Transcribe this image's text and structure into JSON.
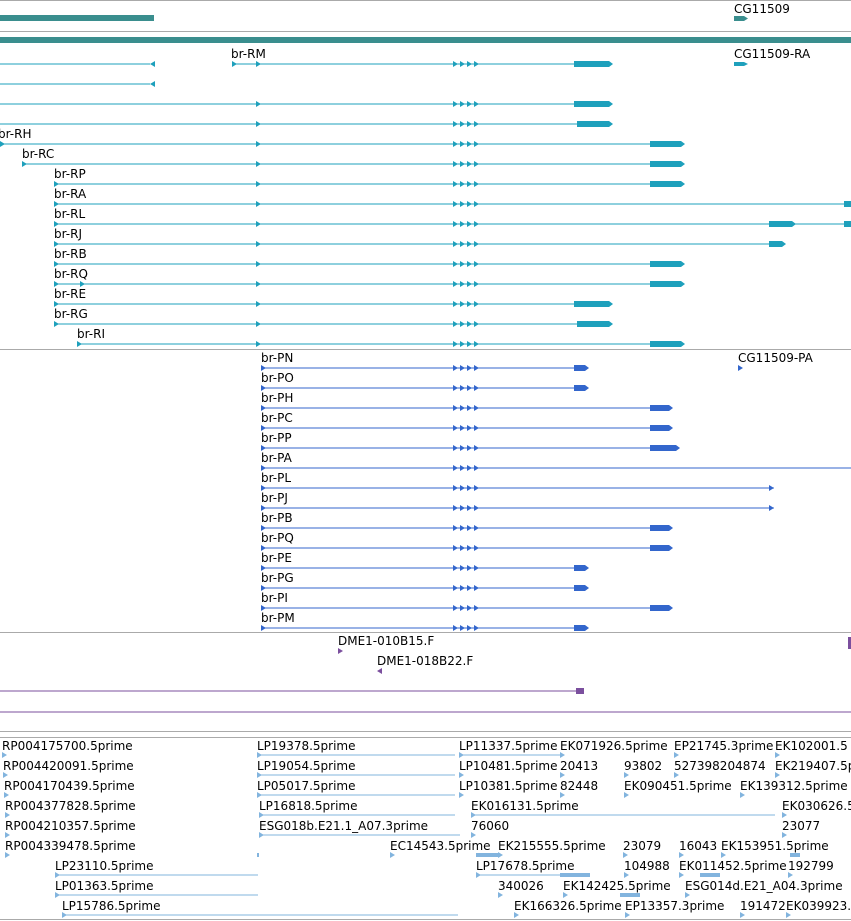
{
  "colors": {
    "gene": "#3a8e8e",
    "transcript_rna": "#1ea0bc",
    "transcript_protein": "#3366cc",
    "clone": "#7b4f9e",
    "est": "#82b4de",
    "divider": "#aaaaaa"
  },
  "icons": [
    "arrow-right-icon",
    "arrow-left-icon"
  ],
  "gene_track": {
    "label": "CG11509"
  },
  "rna_track": {
    "labels": [
      "br-RM",
      "CG11509-RA",
      "br-RH",
      "br-RC",
      "br-RP",
      "br-RA",
      "br-RL",
      "br-RJ",
      "br-RB",
      "br-RQ",
      "br-RE",
      "br-RG",
      "br-RI"
    ]
  },
  "protein_track": {
    "labels": [
      "br-PN",
      "CG11509-PA",
      "br-PO",
      "br-PH",
      "br-PC",
      "br-PP",
      "br-PA",
      "br-PL",
      "br-PJ",
      "br-PB",
      "br-PQ",
      "br-PE",
      "br-PG",
      "br-PI",
      "br-PM"
    ]
  },
  "clone_track": {
    "labels": [
      "DME1-010B15.F",
      "DME1-018B22.F"
    ]
  },
  "est_track": {
    "labels": [
      "RP004175700.5prime",
      "LP19378.5prime",
      "LP11337.5prime",
      "EK071926.5prime",
      "EP21745.3prime",
      "EK102001.5",
      "RP004420091.5prime",
      "LP19054.5prime",
      "LP10481.5prime",
      "20413",
      "93802",
      "527398204874",
      "EK219407.5p",
      "RP004170439.5prime",
      "LP05017.5prime",
      "LP10381.5prime",
      "82448",
      "EK090451.5prime",
      "EK139312.5prime",
      "RP004377828.5prime",
      "LP16818.5prime",
      "EK016131.5prime",
      "EK030626.5",
      "RP004210357.5prime",
      "ESG018b.E21.1_A07.3prime",
      "76060",
      "23077",
      "RP004339478.5prime",
      "EC14543.5prime",
      "EK215555.5prime",
      "23079",
      "16043",
      "EK153951.5prime",
      "LP23110.5prime",
      "LP17678.5prime",
      "104988",
      "EK011452.5prime",
      "192799",
      "LP01363.5prime",
      "340026",
      "EK142425.5prime",
      "ESG014d.E21_A04.3prime",
      "LP15786.5prime",
      "EK166326.5prime",
      "EP13357.3prime",
      "191472",
      "EK039923."
    ]
  }
}
